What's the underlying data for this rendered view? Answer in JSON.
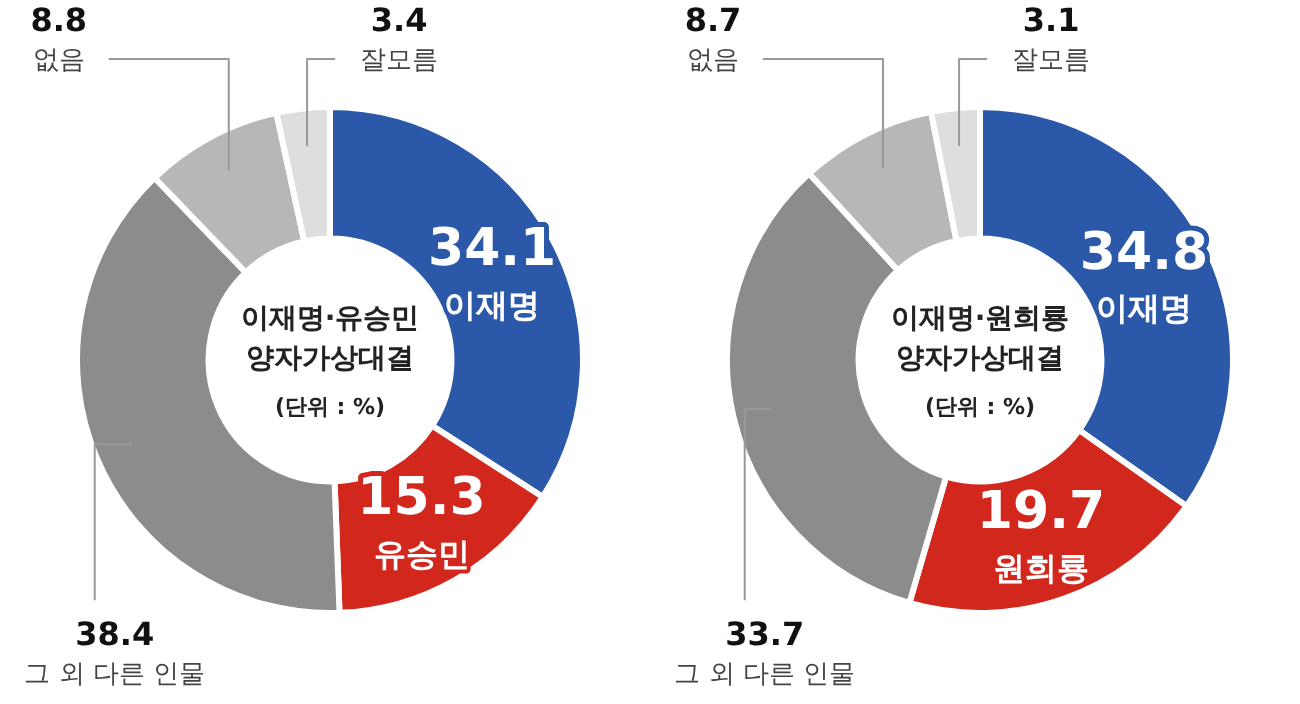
{
  "chart_data": [
    {
      "type": "donut",
      "title": "이재명·유승민 양자가상대결",
      "subtitle": "(단위 : %)",
      "categories": [
        "이재명",
        "유승민",
        "그 외 다른 인물",
        "없음",
        "잘모름"
      ],
      "values": [
        34.1,
        15.3,
        38.4,
        8.8,
        3.4
      ],
      "colors": [
        "#2b58a8",
        "#d2271d",
        "#8c8c8c",
        "#b7b7b7",
        "#dedede"
      ],
      "data_labels": true,
      "legend": false
    },
    {
      "type": "donut",
      "title": "이재명·원희룡 양자가상대결",
      "subtitle": "(단위 : %)",
      "categories": [
        "이재명",
        "원희룡",
        "그 외 다른 인물",
        "없음",
        "잘모름"
      ],
      "values": [
        34.8,
        19.7,
        33.7,
        8.7,
        3.1
      ],
      "colors": [
        "#2b58a8",
        "#d2271d",
        "#8c8c8c",
        "#b7b7b7",
        "#dedede"
      ],
      "data_labels": true,
      "legend": false
    }
  ]
}
